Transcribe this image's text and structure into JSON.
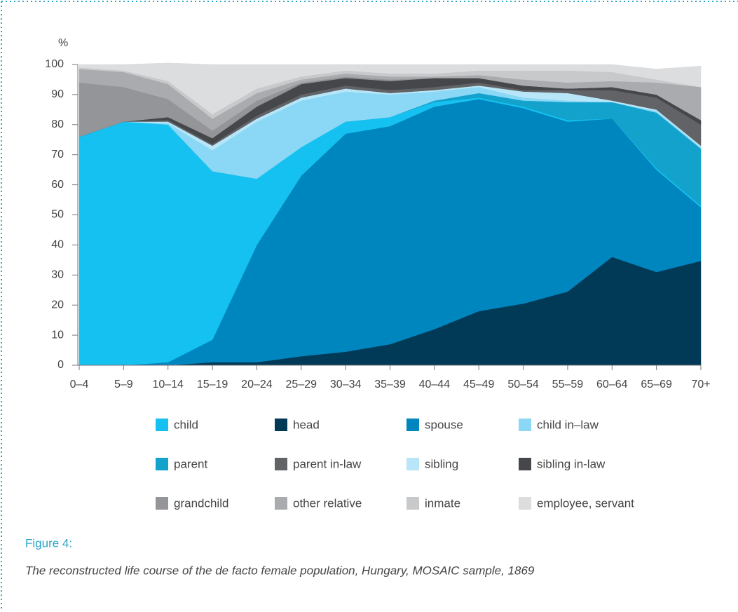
{
  "chart_data": {
    "type": "stacked_area",
    "y_unit": "%",
    "categories": [
      "0–4",
      "5–9",
      "10–14",
      "15–19",
      "20–24",
      "25–29",
      "30–34",
      "35–39",
      "40–44",
      "45–49",
      "50–54",
      "55–59",
      "60–64",
      "65–69",
      "70+"
    ],
    "ylim": [
      0,
      100
    ],
    "yticks": [
      0,
      10,
      20,
      30,
      40,
      50,
      60,
      70,
      80,
      90,
      100
    ],
    "series": [
      {
        "name": "head",
        "color": "#003a57",
        "values": [
          0,
          0,
          0,
          1,
          1,
          3,
          4.5,
          7,
          12,
          18,
          20.5,
          24.5,
          36,
          31,
          34.7
        ]
      },
      {
        "name": "spouse",
        "color": "#0086bf",
        "values": [
          0,
          0,
          1,
          7.5,
          39,
          60,
          72.5,
          72.5,
          74,
          70.5,
          65,
          56.5,
          46,
          34,
          17.8
        ]
      },
      {
        "name": "child",
        "color": "#15c1f0",
        "values": [
          76,
          81,
          79,
          56,
          22,
          9.5,
          4,
          3,
          1.5,
          0.5,
          0.5,
          0.5,
          0,
          0.5,
          0.5
        ]
      },
      {
        "name": "parent",
        "color": "#12a2cc",
        "values": [
          0,
          0,
          0,
          0,
          0,
          0,
          0,
          0,
          0.5,
          1.5,
          2,
          6,
          5.5,
          18.5,
          19
        ]
      },
      {
        "name": "child in–law",
        "color": "#8ad8f5",
        "values": [
          0,
          0,
          0.5,
          7,
          19,
          15.5,
          10,
          7.5,
          3,
          2,
          1,
          0.5,
          0,
          0.5,
          0.5
        ]
      },
      {
        "name": "sibling",
        "color": "#b8e6f8",
        "values": [
          0,
          0,
          0.5,
          1.5,
          1,
          1,
          1,
          0.5,
          0.5,
          0.5,
          2,
          2.5,
          0.5,
          0.5,
          0.5
        ]
      },
      {
        "name": "parent in-law",
        "color": "#616366",
        "values": [
          0,
          0,
          0.5,
          0.5,
          1,
          1,
          1,
          1,
          1,
          1,
          0.5,
          1,
          3.5,
          4,
          7
        ]
      },
      {
        "name": "sibling in-law",
        "color": "#45474a",
        "values": [
          0,
          0,
          1,
          2,
          3,
          3.5,
          2.5,
          3,
          3,
          1.5,
          1.5,
          0.5,
          1,
          1,
          1.5
        ]
      },
      {
        "name": "grandchild",
        "color": "#939598",
        "values": [
          18,
          11.5,
          6,
          2.5,
          2,
          0.5,
          0.5,
          0.5,
          0,
          0,
          0,
          0,
          0,
          0,
          0
        ]
      },
      {
        "name": "other relative",
        "color": "#a9abae",
        "values": [
          4.5,
          5,
          5,
          4,
          2.5,
          1,
          1,
          1,
          0.5,
          1,
          2,
          2,
          2,
          4,
          11
        ]
      },
      {
        "name": "inmate",
        "color": "#c8c9cb",
        "values": [
          0.5,
          0.5,
          1,
          1.5,
          1.5,
          1,
          1,
          1,
          1,
          1.5,
          3,
          4,
          3,
          1,
          0
        ]
      },
      {
        "name": "employee,  servant",
        "color": "#dcdddf",
        "values": [
          1,
          2,
          6,
          16.5,
          8,
          4,
          2,
          3,
          3,
          2,
          2,
          2,
          2.5,
          3.5,
          7
        ]
      }
    ],
    "figure_label": "Figure 4:",
    "caption": "The reconstructed life course of the de facto female population, Hungary, MOSAIC sample, 1869"
  }
}
